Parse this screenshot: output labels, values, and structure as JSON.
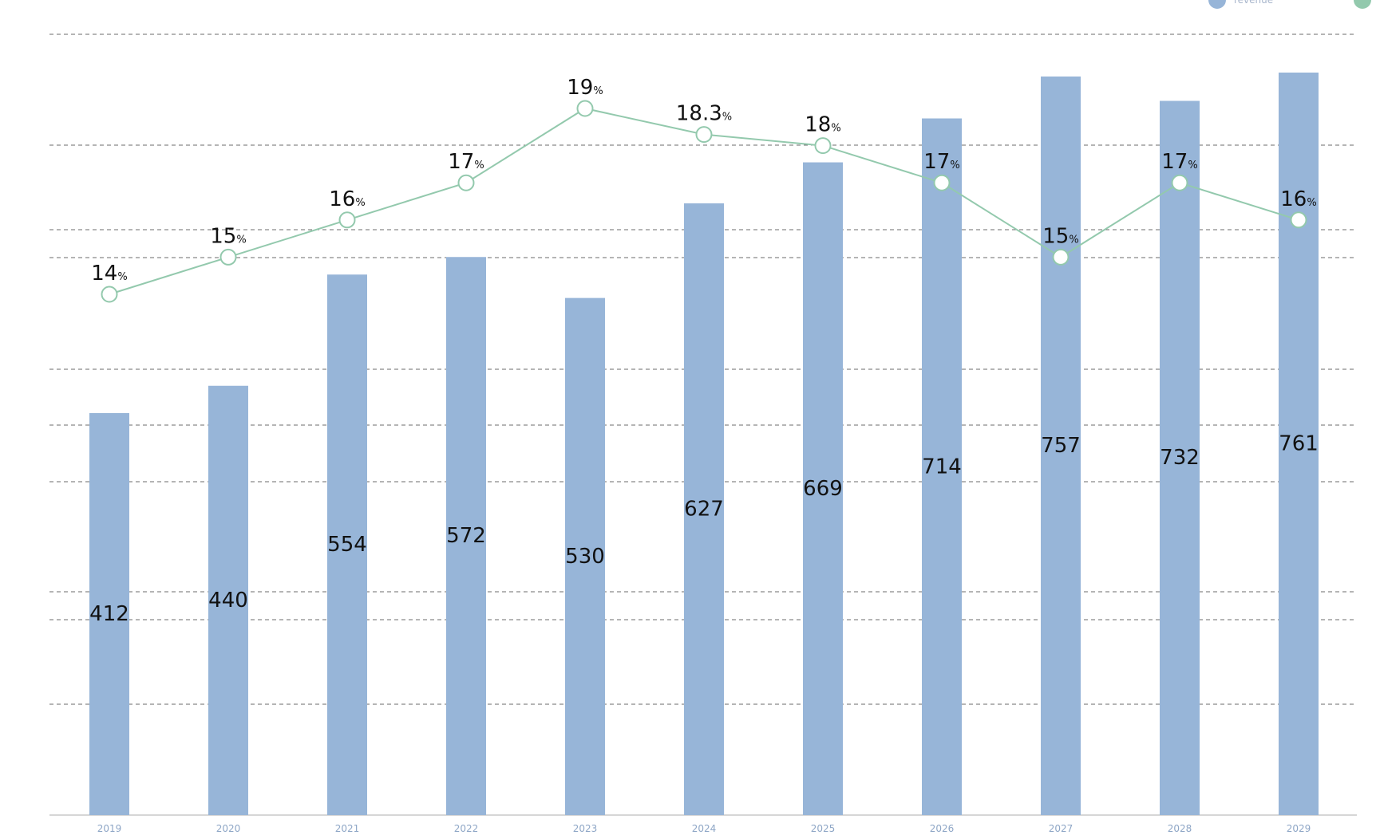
{
  "chart_data": {
    "type": "bar",
    "categories": [
      "2019",
      "2020",
      "2021",
      "2022",
      "2023",
      "2024",
      "2025",
      "2026",
      "2027",
      "2028",
      "2029"
    ],
    "series": [
      {
        "name": "revenue",
        "kind": "bar",
        "color": "#97b5d8",
        "values": [
          412,
          440,
          554,
          572,
          530,
          627,
          669,
          714,
          757,
          732,
          761
        ]
      },
      {
        "name": "",
        "kind": "line",
        "color": "#93c9ad",
        "unit": "%",
        "values": [
          14,
          15,
          16,
          17,
          19,
          18.3,
          18,
          17,
          15,
          17,
          16
        ]
      }
    ],
    "grid": true,
    "legend_position": "top-right"
  }
}
